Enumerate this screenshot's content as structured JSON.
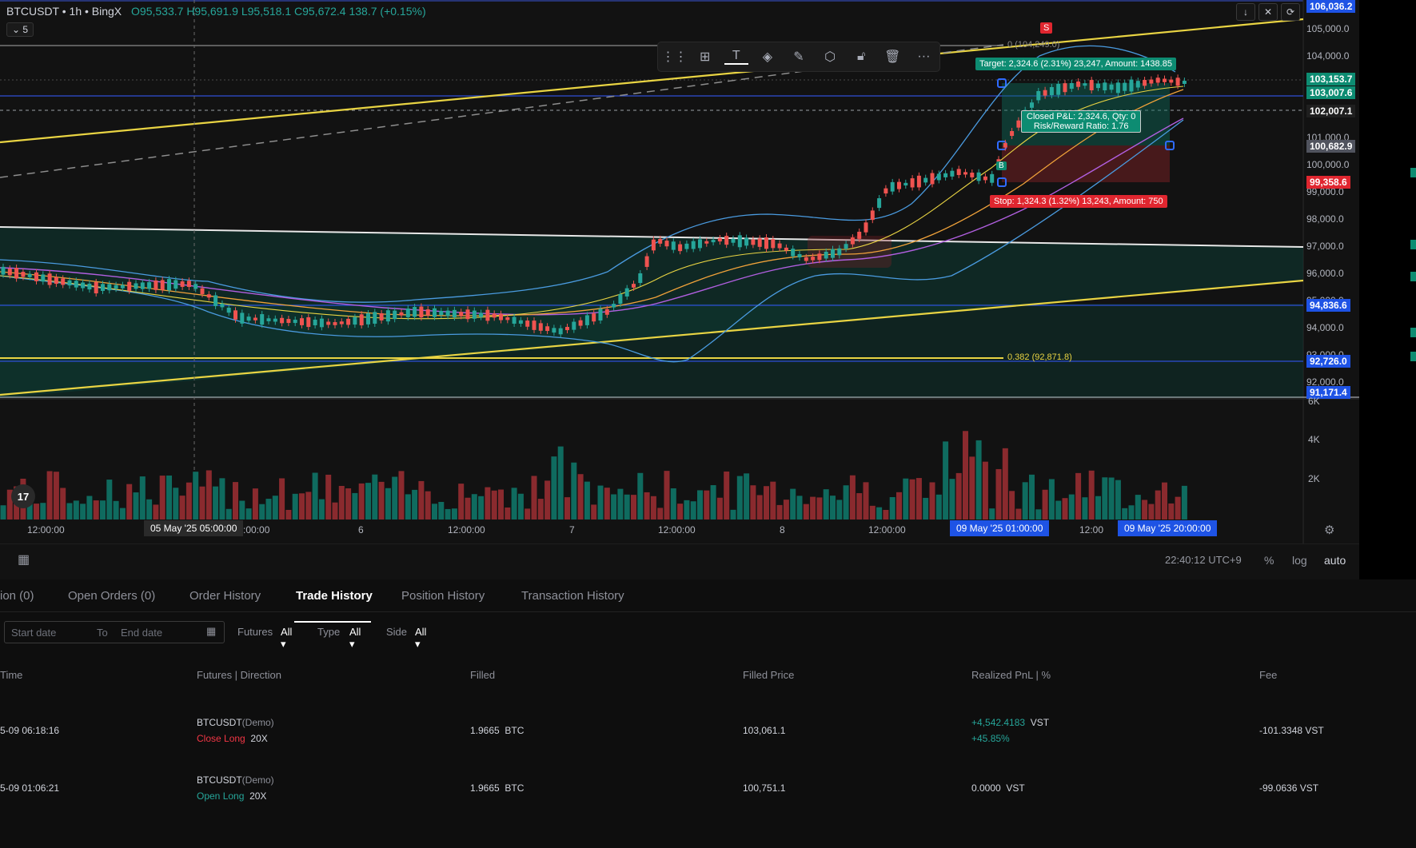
{
  "header": {
    "symbol": "BTCUSDT • 1h • BingX",
    "ohlc": "O95,533.7 H95,691.9 L95,518.1 C95,672.4 138.7 (+0.15%)",
    "collapse_count": "5"
  },
  "toolbar_icons": [
    "drag-handle-icon",
    "layout-icon",
    "text-icon",
    "fill-icon",
    "brush-icon",
    "settings-icon",
    "lock-icon",
    "trash-icon",
    "more-icon"
  ],
  "price_axis": {
    "labels": [
      "105,000.0",
      "104,000.0",
      "101,000.0",
      "100,000.0",
      "99,000.0",
      "98,000.0",
      "97,000.0",
      "96,000.0",
      "95,000.0",
      "94,000.0",
      "93,000.0",
      "92,000.0"
    ],
    "tags": [
      {
        "value": "106,036.2",
        "color": "#1e53e5"
      },
      {
        "value": "103,153.7",
        "color": "#0d8c72"
      },
      {
        "value": "103,007.6",
        "color": "#0d8c72"
      },
      {
        "value": "102,007.1",
        "color": "#1f1f1f"
      },
      {
        "value": "100,682.9",
        "color": "#50535e"
      },
      {
        "value": "99,358.6",
        "color": "#e0262f"
      },
      {
        "value": "94,836.6",
        "color": "#1e53e5"
      },
      {
        "value": "92,726.0",
        "color": "#1e53e5"
      },
      {
        "value": "91,171.4",
        "color": "#1e53e5"
      }
    ]
  },
  "annotations": {
    "fib_top": "0 (104,249.0)",
    "fib_382": "0.382 (92,871.8)",
    "target": "Target: 2,324.6 (2.31%) 23,247, Amount: 1438.85",
    "closed_pnl": "Closed P&L: 2,324.6, Qty: 0",
    "rr_ratio": "Risk/Reward Ratio: 1.76",
    "stop": "Stop: 1,324.3 (1.32%) 13,243, Amount: 750",
    "sell_marker": "S",
    "buy_marker": "B"
  },
  "volume_axis": [
    "6K",
    "4K",
    "2K"
  ],
  "time_axis": {
    "labels": [
      "12:00:00",
      ":00:00",
      "6",
      "12:00:00",
      "7",
      "12:00:00",
      "8",
      "12:00:00",
      "12:00"
    ],
    "crosshair_tag": "05 May '25   05:00:00",
    "range_start_tag": "09 May '25   01:00:00",
    "range_end_tag": "09 May '25   20:00:00"
  },
  "status": {
    "clock": "22:40:12 UTC+9",
    "percent": "%",
    "log": "log",
    "auto": "auto"
  },
  "tabs": [
    {
      "label": "ion (0)"
    },
    {
      "label": "Open Orders (0)"
    },
    {
      "label": "Order History"
    },
    {
      "label": "Trade History"
    },
    {
      "label": "Position History"
    },
    {
      "label": "Transaction History"
    }
  ],
  "filters": {
    "start_placeholder": "Start date",
    "to": "To",
    "end_placeholder": "End date",
    "futures_label": "Futures",
    "futures_val": "All",
    "type_label": "Type",
    "type_val": "All",
    "side_label": "Side",
    "side_val": "All"
  },
  "columns": [
    "Time",
    "Futures | Direction",
    "Filled",
    "Filled Price",
    "Realized PnL | %",
    "Fee"
  ],
  "trades": [
    {
      "time": "5-09 06:18:16",
      "symbol": "BTCUSDT",
      "demo": "(Demo)",
      "direction": "Close Long",
      "leverage": "20X",
      "filled": "1.9665",
      "filled_unit": "BTC",
      "price": "103,061.1",
      "pnl": "+4,542.4183",
      "pnl_unit": "VST",
      "pnl_pct": "+45.85%",
      "fee": "-101.3348 VST"
    },
    {
      "time": "5-09 01:06:21",
      "symbol": "BTCUSDT",
      "demo": "(Demo)",
      "direction": "Open Long",
      "leverage": "20X",
      "filled": "1.9665",
      "filled_unit": "BTC",
      "price": "100,751.1",
      "pnl": "0.0000",
      "pnl_unit": "VST",
      "pnl_pct": "",
      "fee": "-99.0636 VST"
    }
  ]
}
